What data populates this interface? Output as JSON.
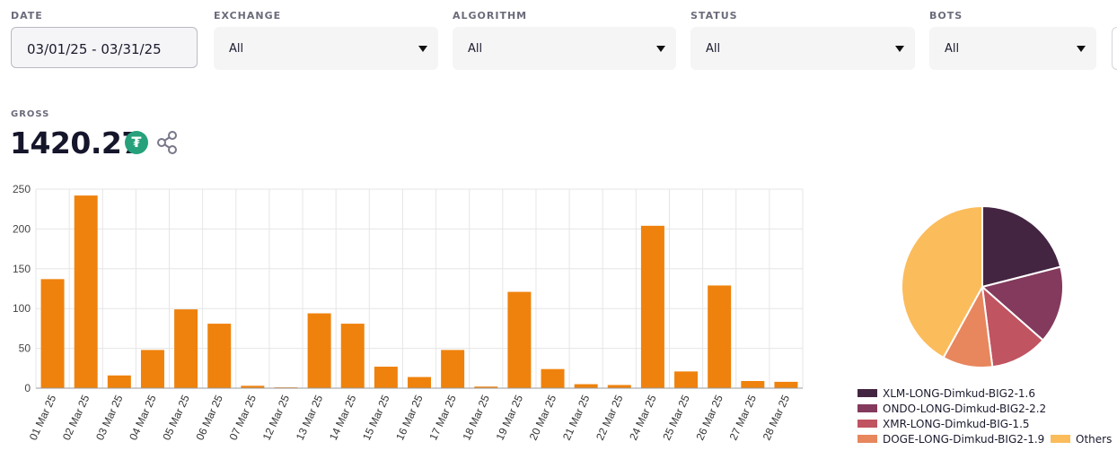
{
  "filters": {
    "date": {
      "label": "DATE",
      "value": "03/01/25 - 03/31/25"
    },
    "exchange": {
      "label": "EXCHANGE",
      "value": "All"
    },
    "algorithm": {
      "label": "ALGORITHM",
      "value": "All"
    },
    "status": {
      "label": "STATUS",
      "value": "All"
    },
    "bots": {
      "label": "BOTS",
      "value": "All"
    }
  },
  "gross": {
    "label": "GROSS",
    "value": "1420.27",
    "currency_icon": "tether-icon",
    "currency_glyph": "₮",
    "share_icon": "share-icon"
  },
  "colors": {
    "bar": "#ef820d",
    "grid": "#e6e6e6",
    "pie_divider": "#ffffff"
  },
  "chart_data": [
    {
      "type": "bar",
      "categories": [
        "01 Mar 25",
        "02 Mar 25",
        "03 Mar 25",
        "04 Mar 25",
        "05 Mar 25",
        "06 Mar 25",
        "07 Mar 25",
        "12 Mar 25",
        "13 Mar 25",
        "14 Mar 25",
        "15 Mar 25",
        "16 Mar 25",
        "17 Mar 25",
        "18 Mar 25",
        "19 Mar 25",
        "20 Mar 25",
        "21 Mar 25",
        "22 Mar 25",
        "24 Mar 25",
        "25 Mar 25",
        "26 Mar 25",
        "27 Mar 25",
        "28 Mar 25"
      ],
      "values": [
        137,
        242,
        16,
        48,
        99,
        81,
        3,
        1,
        94,
        81,
        27,
        14,
        48,
        2,
        121,
        24,
        5,
        4,
        204,
        21,
        129,
        9,
        8
      ],
      "yticks": [
        0,
        50,
        100,
        150,
        200,
        250
      ],
      "ylim": [
        0,
        250
      ],
      "grid": true,
      "title": "",
      "xlabel": "",
      "ylabel": ""
    },
    {
      "type": "pie",
      "slices": [
        {
          "label": "XLM-LONG-Dimkud-BIG2-1.6",
          "value": 21,
          "color": "#432542"
        },
        {
          "label": "ONDO-LONG-Dimkud-BIG2-2.2",
          "value": 15.5,
          "color": "#833a5c"
        },
        {
          "label": "XMR-LONG-Dimkud-BIG-1.5",
          "value": 11.5,
          "color": "#c05461"
        },
        {
          "label": "DOGE-LONG-Dimkud-BIG2-1.9",
          "value": 10,
          "color": "#e8865e"
        },
        {
          "label": "Others",
          "value": 42,
          "color": "#fbbc5c"
        }
      ],
      "legend_position": "bottom"
    }
  ]
}
